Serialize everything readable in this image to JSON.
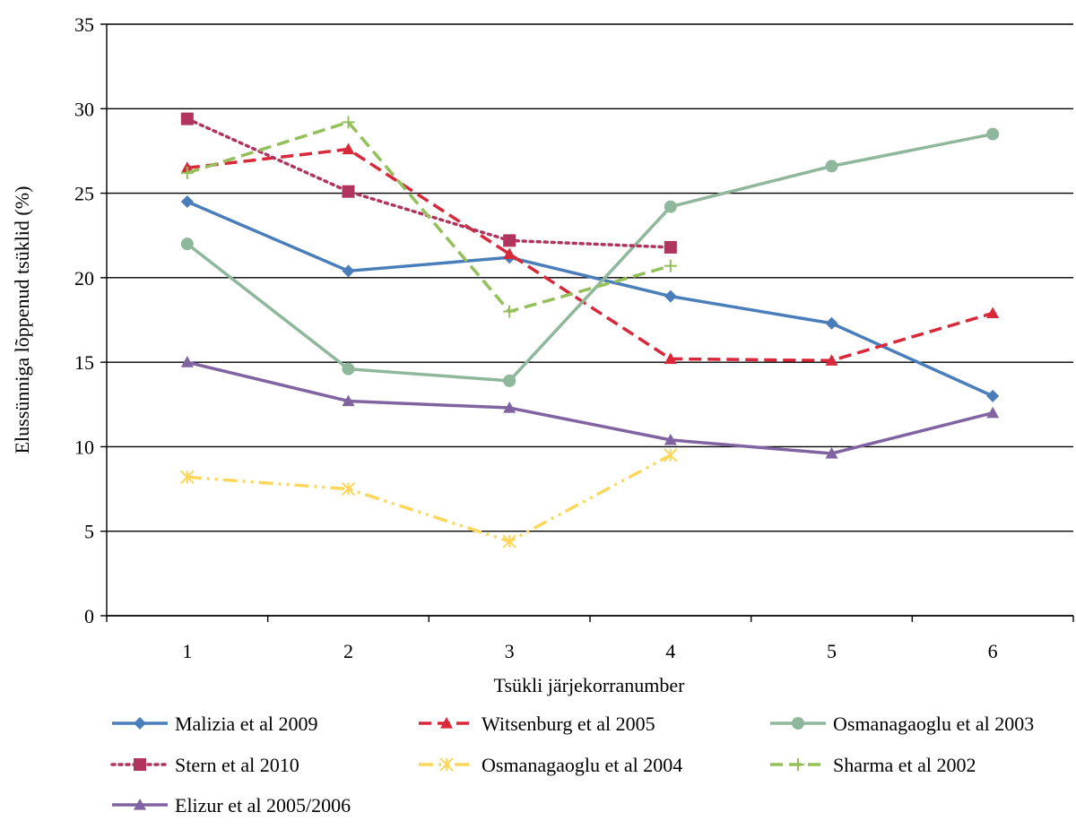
{
  "chart_data": {
    "type": "line",
    "title": "",
    "xlabel": "Tsükli järjekorranumber",
    "ylabel": "Elussünniga lõppenud tsüklid (%)",
    "categories": [
      "1",
      "2",
      "3",
      "4",
      "5",
      "6"
    ],
    "ylim": [
      0,
      35
    ],
    "yticks": [
      "0",
      "5",
      "10",
      "15",
      "20",
      "25",
      "30",
      "35"
    ],
    "grid": "horizontal",
    "legend_position": "bottom",
    "series": [
      {
        "name": "Malizia et al 2009",
        "color": "#4a7ebb",
        "dash": "solid",
        "marker": "diamond",
        "values": [
          24.5,
          20.4,
          21.2,
          18.9,
          17.3,
          13.0
        ]
      },
      {
        "name": "Witsenburg et al 2005",
        "color": "#d8283a",
        "dash": "dashed",
        "marker": "triangle",
        "values": [
          26.5,
          27.6,
          21.4,
          15.2,
          15.1,
          17.9
        ]
      },
      {
        "name": "Osmanagaoglu et al 2003",
        "color": "#8fb79b",
        "dash": "solid",
        "marker": "circle",
        "values": [
          22.0,
          14.6,
          13.9,
          24.2,
          26.6,
          28.5
        ]
      },
      {
        "name": "Stern et al 2010",
        "color": "#b0345e",
        "dash": "dotted",
        "marker": "square",
        "values": [
          29.4,
          25.1,
          22.2,
          21.8,
          null,
          null
        ]
      },
      {
        "name": "Osmanagaoglu et al 2004",
        "color": "#fcd75b",
        "dash": "dashdotdot",
        "marker": "star",
        "values": [
          8.2,
          7.5,
          4.4,
          9.5,
          null,
          null
        ]
      },
      {
        "name": "Sharma et al 2002",
        "color": "#94c05a",
        "dash": "dashed",
        "marker": "plus",
        "values": [
          26.2,
          29.2,
          18.0,
          20.7,
          null,
          null
        ]
      },
      {
        "name": "Elizur et al 2005/2006",
        "color": "#8064a2",
        "dash": "solid",
        "marker": "triangle",
        "values": [
          15.0,
          12.7,
          12.3,
          10.4,
          9.6,
          12.0
        ]
      }
    ]
  }
}
